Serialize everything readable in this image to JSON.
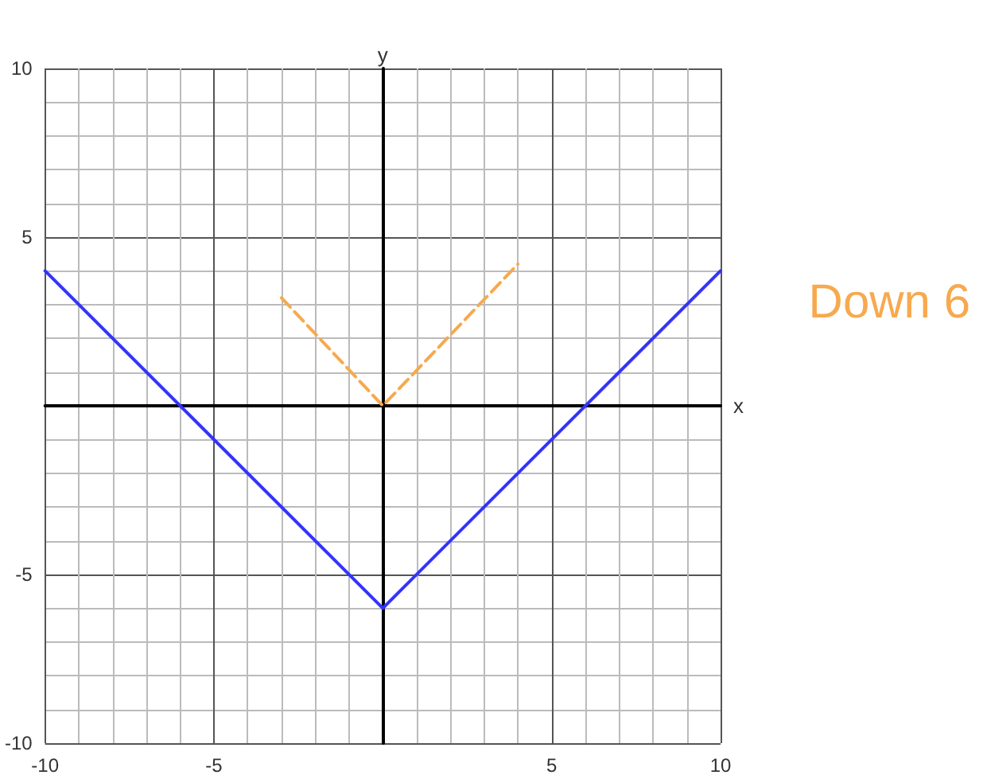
{
  "chart_data": {
    "type": "line",
    "xlabel": "x",
    "ylabel": "y",
    "xlim": [
      -10,
      10
    ],
    "ylim": [
      -10,
      10
    ],
    "xticks": [
      -10,
      -5,
      5,
      10
    ],
    "yticks": [
      -10,
      -5,
      5,
      10
    ],
    "grid": true,
    "marker": "none",
    "series": [
      {
        "x": [
          -10,
          0,
          10
        ],
        "values": [
          4,
          -6,
          4
        ],
        "color": "#3333ff",
        "line_style": "solid"
      },
      {
        "x": [
          -3,
          0,
          4
        ],
        "values": [
          3.2,
          0,
          4.2
        ],
        "color": "#f7a94f",
        "line_style": "dashed"
      }
    ],
    "annotations": [
      "Down 6"
    ]
  }
}
